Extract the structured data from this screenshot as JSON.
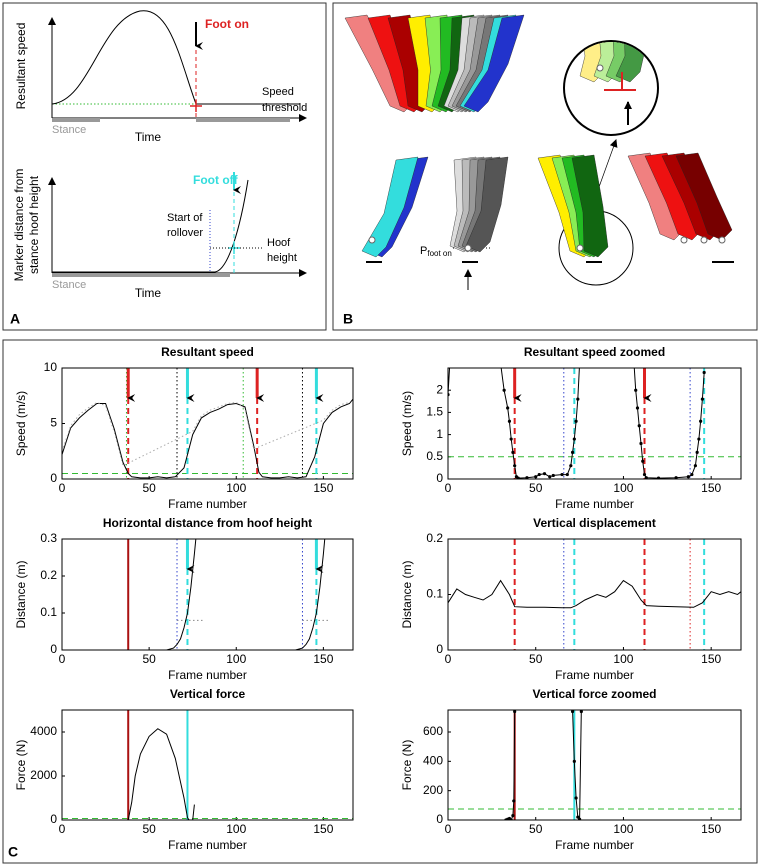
{
  "panel_a": {
    "label": "A",
    "top": {
      "ylabel": "Resultant speed",
      "foot_on": "Foot on",
      "threshold": [
        "Speed",
        "threshold"
      ],
      "stance": "Stance",
      "xlabel": "Time"
    },
    "bottom": {
      "ylabel": [
        "Marker distance from",
        "stance hoof height"
      ],
      "foot_off": "Foot off",
      "rollover": [
        "Start of",
        "rollover"
      ],
      "hoof_height": [
        "Hoof",
        "height"
      ],
      "stance": "Stance",
      "xlabel": "Time"
    }
  },
  "panel_b": {
    "label": "B",
    "p_label": "P",
    "p_subscript": "foot on"
  },
  "panel_c": {
    "label": "C"
  },
  "chart_data": [
    {
      "type": "line",
      "title": "Resultant speed",
      "xlabel": "Frame number",
      "ylabel": "Speed (m/s)",
      "xlim": [
        0,
        167
      ],
      "xticks": [
        0,
        50,
        100,
        150
      ],
      "ylim": [
        0,
        10
      ],
      "yticks": [
        0,
        5,
        10
      ],
      "series": [
        {
          "color": "#000000",
          "style": "solid",
          "x": [
            0,
            5,
            10,
            15,
            20,
            25,
            30,
            35,
            38,
            40,
            45,
            50,
            55,
            60,
            65,
            70,
            75,
            80,
            85,
            90,
            95,
            100,
            105,
            110,
            113,
            115,
            120,
            125,
            130,
            135,
            140,
            145,
            150,
            155,
            160,
            165,
            167
          ],
          "values": [
            2.2,
            4.6,
            5.5,
            6.2,
            6.8,
            6.8,
            4.5,
            1.5,
            0.5,
            0.2,
            0.1,
            0.1,
            0.2,
            0.1,
            0.2,
            1.0,
            4.0,
            5.5,
            6.0,
            6.3,
            6.7,
            6.8,
            6.5,
            3.0,
            0.6,
            0.2,
            0.1,
            0.1,
            0.2,
            0.1,
            0.2,
            2.0,
            5.0,
            6.0,
            6.5,
            6.8,
            7.2
          ]
        },
        {
          "color": "#aaaaaa",
          "style": "dotted",
          "x": [
            0,
            5,
            10,
            15,
            20,
            25,
            30,
            35,
            75,
            80,
            85,
            90,
            95,
            100,
            105,
            110,
            150,
            155,
            160,
            165
          ],
          "values": [
            2.5,
            4.8,
            5.8,
            6.4,
            6.9,
            6.6,
            4.2,
            1.2,
            4.3,
            5.7,
            6.2,
            6.5,
            6.8,
            6.9,
            6.3,
            2.7,
            5.3,
            6.2,
            6.7,
            6.9
          ]
        }
      ],
      "hlines": [
        {
          "y": 0.5,
          "color": "#33bb33",
          "style": "dashed"
        }
      ],
      "vlines": [
        {
          "x": 37,
          "color": "#33bb33",
          "style": "dotted"
        },
        {
          "x": 38,
          "color": "#dd2222",
          "style": "dashed",
          "arrow": true
        },
        {
          "x": 66,
          "color": "#000000",
          "style": "dotted"
        },
        {
          "x": 72,
          "color": "#33dddd",
          "style": "dashed",
          "arrow": true
        },
        {
          "x": 104,
          "color": "#33bb33",
          "style": "dotted"
        },
        {
          "x": 112,
          "color": "#dd2222",
          "style": "dashed",
          "arrow": true
        },
        {
          "x": 138,
          "color": "#000000",
          "style": "dotted"
        },
        {
          "x": 146,
          "color": "#33dddd",
          "style": "dashed",
          "arrow": true
        }
      ]
    },
    {
      "type": "line",
      "title": "Resultant speed zoomed",
      "xlabel": "Frame number",
      "ylabel": "Speed (m/s)",
      "xlim": [
        0,
        167
      ],
      "xticks": [
        0,
        50,
        100,
        150
      ],
      "ylim": [
        0,
        2.5
      ],
      "yticks": [
        0,
        0.5,
        1,
        1.5,
        2
      ],
      "series": [
        {
          "color": "#000000",
          "style": "solid",
          "markers": true,
          "x": [
            0,
            1,
            30,
            32,
            34,
            35,
            36,
            37,
            38,
            39,
            40,
            45,
            50,
            52,
            55,
            58,
            60,
            65,
            68,
            70,
            71,
            72,
            73,
            74,
            75,
            106,
            107,
            108,
            109,
            110,
            111,
            112,
            113,
            120,
            130,
            137,
            139,
            141,
            142,
            143,
            144,
            145,
            146
          ],
          "values": [
            1.9,
            2.6,
            2.6,
            2.0,
            1.6,
            1.3,
            0.9,
            0.6,
            0.3,
            0.05,
            0.02,
            0.03,
            0.05,
            0.1,
            0.12,
            0.05,
            0.08,
            0.1,
            0.1,
            0.3,
            0.6,
            0.9,
            1.3,
            1.8,
            2.6,
            2.6,
            2.0,
            1.6,
            1.2,
            0.8,
            0.4,
            0.1,
            0.03,
            0.02,
            0.03,
            0.05,
            0.1,
            0.3,
            0.6,
            0.9,
            1.3,
            1.8,
            2.4
          ]
        }
      ],
      "hlines": [
        {
          "y": 0.5,
          "color": "#33bb33",
          "style": "dashed"
        }
      ],
      "vlines": [
        {
          "x": 38,
          "color": "#dd2222",
          "style": "dashed",
          "arrow": true
        },
        {
          "x": 66,
          "color": "#3344cc",
          "style": "dotted"
        },
        {
          "x": 72,
          "color": "#33dddd",
          "style": "dashed"
        },
        {
          "x": 112,
          "color": "#dd2222",
          "style": "dashed",
          "arrow": true
        },
        {
          "x": 138,
          "color": "#3344cc",
          "style": "dotted"
        },
        {
          "x": 146,
          "color": "#33dddd",
          "style": "dashed"
        }
      ]
    },
    {
      "type": "line",
      "title": "Horizontal distance from hoof height",
      "xlabel": "Frame number",
      "ylabel": "Distance (m)",
      "xlim": [
        0,
        167
      ],
      "xticks": [
        0,
        50,
        100,
        150
      ],
      "ylim": [
        0,
        0.3
      ],
      "yticks": [
        0,
        0.1,
        0.2,
        0.3
      ],
      "series": [
        {
          "color": "#000000",
          "style": "solid",
          "x": [
            60,
            64,
            66,
            68,
            70,
            72,
            74,
            76,
            77
          ],
          "values": [
            0,
            0.005,
            0.015,
            0.03,
            0.06,
            0.1,
            0.17,
            0.26,
            0.31
          ]
        },
        {
          "color": "#000000",
          "style": "solid",
          "x": [
            134,
            138,
            140,
            142,
            144,
            146,
            148,
            150,
            151
          ],
          "values": [
            0,
            0.005,
            0.015,
            0.03,
            0.06,
            0.1,
            0.17,
            0.26,
            0.31
          ]
        }
      ],
      "hlines": [
        {
          "y": 0.08,
          "color": "#888888",
          "style": "dotted",
          "xrange": [
            66,
            82
          ]
        },
        {
          "y": 0.08,
          "color": "#888888",
          "style": "dotted",
          "xrange": [
            138,
            153
          ]
        }
      ],
      "vlines": [
        {
          "x": 38,
          "color": "#aa1111",
          "style": "solid"
        },
        {
          "x": 66,
          "color": "#3344cc",
          "style": "dotted"
        },
        {
          "x": 72,
          "color": "#33dddd",
          "style": "dashed",
          "arrow": true
        },
        {
          "x": 138,
          "color": "#3344cc",
          "style": "dotted"
        },
        {
          "x": 146,
          "color": "#33dddd",
          "style": "dashed",
          "arrow": true
        }
      ]
    },
    {
      "type": "line",
      "title": "Vertical displacement",
      "xlabel": "Frame number",
      "ylabel": "Distance (m)",
      "xlim": [
        0,
        167
      ],
      "xticks": [
        0,
        50,
        100,
        150
      ],
      "ylim": [
        0,
        0.2
      ],
      "yticks": [
        0,
        0.1,
        0.2
      ],
      "series": [
        {
          "color": "#000000",
          "style": "solid",
          "x": [
            0,
            5,
            10,
            15,
            20,
            25,
            30,
            35,
            38,
            45,
            55,
            65,
            70,
            73,
            78,
            85,
            90,
            95,
            100,
            105,
            110,
            113,
            120,
            130,
            140,
            145,
            150,
            155,
            160,
            165,
            167
          ],
          "values": [
            0.085,
            0.11,
            0.1,
            0.095,
            0.09,
            0.1,
            0.125,
            0.1,
            0.078,
            0.077,
            0.077,
            0.076,
            0.076,
            0.08,
            0.09,
            0.1,
            0.095,
            0.105,
            0.125,
            0.115,
            0.09,
            0.08,
            0.079,
            0.078,
            0.077,
            0.085,
            0.105,
            0.1,
            0.105,
            0.1,
            0.105
          ]
        }
      ],
      "vlines": [
        {
          "x": 38,
          "color": "#dd2222",
          "style": "dashed"
        },
        {
          "x": 66,
          "color": "#3344cc",
          "style": "dotted"
        },
        {
          "x": 72,
          "color": "#33dddd",
          "style": "dashed"
        },
        {
          "x": 112,
          "color": "#dd2222",
          "style": "dashed"
        },
        {
          "x": 138,
          "color": "#dd2222",
          "style": "dotted"
        },
        {
          "x": 146,
          "color": "#33dddd",
          "style": "dashed"
        }
      ]
    },
    {
      "type": "line",
      "title": "Vertical force",
      "xlabel": "Frame number",
      "ylabel": "Force (N)",
      "xlim": [
        0,
        167
      ],
      "xticks": [
        0,
        50,
        100,
        150
      ],
      "ylim": [
        0,
        5000
      ],
      "yticks": [
        0,
        2000,
        4000
      ],
      "series": [
        {
          "color": "#000000",
          "style": "solid",
          "x": [
            38,
            40,
            42,
            45,
            50,
            55,
            60,
            65,
            70,
            72,
            73,
            75,
            76
          ],
          "values": [
            0,
            800,
            2000,
            3000,
            3800,
            4150,
            3900,
            2800,
            1000,
            100,
            0,
            0,
            700
          ]
        }
      ],
      "hlines": [
        {
          "y": 70,
          "color": "#33bb33",
          "style": "dashed"
        }
      ],
      "vlines": [
        {
          "x": 38,
          "color": "#aa1111",
          "style": "solid"
        },
        {
          "x": 72,
          "color": "#33dddd",
          "style": "solid"
        }
      ]
    },
    {
      "type": "line",
      "title": "Vertical force zoomed",
      "xlabel": "Frame number",
      "ylabel": "Force (N)",
      "xlim": [
        0,
        167
      ],
      "xticks": [
        0,
        50,
        100,
        150
      ],
      "ylim": [
        0,
        750
      ],
      "yticks": [
        0,
        200,
        400,
        600
      ],
      "series": [
        {
          "color": "#000000",
          "style": "solid",
          "markers": true,
          "x": [
            33,
            34,
            35,
            36,
            37,
            37.5,
            38,
            39
          ],
          "values": [
            0,
            5,
            10,
            0,
            30,
            130,
            740,
            800
          ]
        },
        {
          "color": "#000000",
          "style": "solid",
          "markers": true,
          "x": [
            70,
            71,
            72,
            73,
            74,
            75,
            76
          ],
          "values": [
            800,
            740,
            400,
            150,
            20,
            5,
            740
          ]
        }
      ],
      "hlines": [
        {
          "y": 75,
          "color": "#33bb33",
          "style": "dashed"
        }
      ],
      "vlines": [
        {
          "x": 38,
          "color": "#aa1111",
          "style": "solid"
        },
        {
          "x": 72,
          "color": "#33dddd",
          "style": "solid"
        }
      ]
    }
  ]
}
